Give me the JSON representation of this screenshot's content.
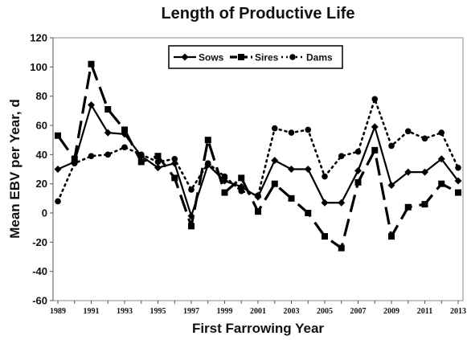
{
  "chart_data": {
    "type": "line",
    "title": "Length of Productive Life",
    "xlabel": "First Farrowing Year",
    "ylabel": "Mean EBV per Year, d",
    "x": [
      1989,
      1990,
      1991,
      1992,
      1993,
      1994,
      1995,
      1996,
      1997,
      1998,
      1999,
      2000,
      2001,
      2002,
      2003,
      2004,
      2005,
      2006,
      2007,
      2008,
      2009,
      2010,
      2011,
      2012,
      2013
    ],
    "xticks": [
      "1989",
      "1991",
      "1993",
      "1995",
      "1997",
      "1999",
      "2001",
      "2003",
      "2005",
      "2007",
      "2009",
      "2011",
      "2013"
    ],
    "ylim": [
      -60,
      120
    ],
    "yticks": [
      "-60",
      "-40",
      "-20",
      "0",
      "20",
      "40",
      "60",
      "80",
      "100",
      "120"
    ],
    "grid": false,
    "legend_position": "top-center",
    "series": [
      {
        "name": "Sows",
        "style": "solid",
        "marker": "diamond",
        "color": "#000000",
        "values": [
          30,
          35,
          74,
          55,
          54,
          39,
          31,
          34,
          -2,
          33,
          22,
          18,
          11,
          36,
          30,
          30,
          7,
          7,
          29,
          59,
          19,
          28,
          28,
          37,
          22
        ]
      },
      {
        "name": "Sires",
        "style": "long-dash",
        "marker": "square",
        "color": "#000000",
        "values": [
          53,
          37,
          102,
          71,
          57,
          35,
          39,
          24,
          -9,
          50,
          14,
          24,
          1,
          20,
          10,
          0,
          -16,
          -24,
          21,
          43,
          -16,
          4,
          6,
          20,
          14
        ]
      },
      {
        "name": "Dams",
        "style": "dotted",
        "marker": "circle",
        "color": "#000000",
        "values": [
          8,
          34,
          39,
          40,
          45,
          40,
          35,
          37,
          16,
          34,
          25,
          15,
          12,
          58,
          55,
          57,
          25,
          39,
          42,
          78,
          46,
          56,
          51,
          55,
          31
        ]
      }
    ]
  }
}
